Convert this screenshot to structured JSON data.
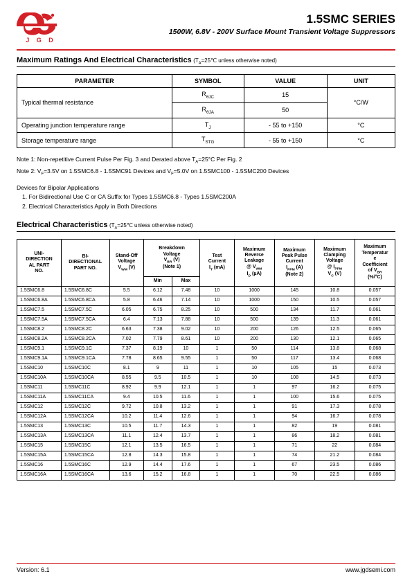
{
  "brand": {
    "initials": "J G D"
  },
  "header": {
    "series_title": "1.5SMC SERIES",
    "subtitle": "1500W, 6.8V - 200V Surface Mount Transient Voltage Suppressors"
  },
  "section1": {
    "title": "Maximum Ratings And Electrical Characteristics",
    "cond": "(T",
    "cond_sub": "A",
    "cond_rest": "=25℃ unless otherwise noted)"
  },
  "t1": {
    "headers": {
      "parameter": "PARAMETER",
      "symbol": "SYMBOL",
      "value": "VALUE",
      "unit": "UNIT"
    },
    "row1_param": "Typical thermal resistance",
    "row1a_symbol_html": "R<sub>θJC</sub>",
    "row1a_value": "15",
    "row1b_symbol_html": "R<sub>θJA</sub>",
    "row1b_value": "50",
    "row1_unit": "°C/W",
    "row2_param": "Operating junction temperature range",
    "row2_symbol_html": "T<sub>J</sub>",
    "row2_value": "- 55 to +150",
    "row2_unit": "°C",
    "row3_param": "Storage temperature range",
    "row3_symbol_html": "T<sub>STG</sub>",
    "row3_value": "- 55 to +150",
    "row3_unit": "°C"
  },
  "notes": {
    "n1_html": "Note 1: Non-repetitive Current Pulse Per Fig. 3 and Derated above T<sub>A</sub>=25°C Per Fig. 2",
    "n2_html": "Note 2: V<sub>F</sub>=3.5V on 1.5SMC6.8 - 1.5SMC91 Devices and V<sub>F</sub>=5.0V on 1.5SMC100 - 1.5SMC200 Devices",
    "bipolar_title": "Devices for Bipolar Applications",
    "bipolar_1": "1. For Bidirectional Use C or CA Suffix for Types 1.5SMC6.8 - Types 1.5SMC200A",
    "bipolar_2": "2. Electrical Characteristics Apply in Both Directions"
  },
  "section2": {
    "title": "Electrical Characteristics",
    "cond": "(T",
    "cond_sub": "A",
    "cond_rest": "=25℃ unless otherwise noted)"
  },
  "t2": {
    "headers": {
      "uni_html": "UNI-<br>DIRECTION<br>AL PART<br>NO.",
      "bi_html": "BI-<br>DIRECTIONAL<br>PART NO.",
      "standoff_html": "Stand-Off<br>Voltage<br>V<sub>WM</sub> (V)",
      "breakdown_top_html": "Breakdown<br>Voltage<br>V<sub>BR</sub> (V)<br>(Note 1)",
      "min": "Min",
      "max": "Max",
      "test_html": "Test<br>Current<br>I<sub>T</sub> (mA)",
      "leak_html": "Maximum<br>Reverse<br>Leakage<br>@ V<sub>WM</sub><br>I<sub>D</sub> (µA)",
      "peak_html": "Maximum<br>Peak Pulse<br>Current<br>I<sub>PPM</sub> (A)<br>(Note 2)",
      "clamp_html": "Maximum<br>Clamping<br>Voltage<br>@ I<sub>PPM</sub><br>V<sub>C</sub> (V)",
      "temp_html": "Maximum<br>Temperatur<br>e<br>Coefficient<br>of V<sub>BR</sub><br>(%/°C)"
    },
    "rows": [
      [
        "1.5SMC6.8",
        "1.5SMC6.8C",
        "5.5",
        "6.12",
        "7.48",
        "10",
        "1000",
        "145",
        "10.8",
        "0.057"
      ],
      [
        "1.5SMC6.8A",
        "1.5SMC6.8CA",
        "5.8",
        "6.46",
        "7.14",
        "10",
        "1000",
        "150",
        "10.5",
        "0.057"
      ],
      [
        "1.5SMC7.5",
        "1.5SMC7.5C",
        "6.05",
        "6.75",
        "8.25",
        "10",
        "500",
        "134",
        "11.7",
        "0.061"
      ],
      [
        "1.5SMC7.5A",
        "1.5SMC7.5CA",
        "6.4",
        "7.13",
        "7.88",
        "10",
        "500",
        "139",
        "11.3",
        "0.061"
      ],
      [
        "1.5SMC8.2",
        "1.5SMC8.2C",
        "6.63",
        "7.38",
        "9.02",
        "10",
        "200",
        "126",
        "12.5",
        "0.065"
      ],
      [
        "1.5SMC8.2A",
        "1.5SMC8.2CA",
        "7.02",
        "7.79",
        "8.61",
        "10",
        "200",
        "130",
        "12.1",
        "0.065"
      ],
      [
        "1.5SMC9.1",
        "1.5SMC9.1C",
        "7.37",
        "8.19",
        "10",
        "1",
        "50",
        "114",
        "13.8",
        "0.068"
      ],
      [
        "1.5SMC9.1A",
        "1.5SMC9.1CA",
        "7.78",
        "8.65",
        "9.55",
        "1",
        "50",
        "117",
        "13.4",
        "0.068"
      ],
      [
        "1.5SMC10",
        "1.5SMC10C",
        "8.1",
        "9",
        "11",
        "1",
        "10",
        "105",
        "15",
        "0.073"
      ],
      [
        "1.5SMC10A",
        "1.5SMC10CA",
        "8.55",
        "9.5",
        "10.5",
        "1",
        "10",
        "108",
        "14.5",
        "0.073"
      ],
      [
        "1.5SMC11",
        "1.5SMC11C",
        "8.92",
        "9.9",
        "12.1",
        "1",
        "1",
        "97",
        "16.2",
        "0.075"
      ],
      [
        "1.5SMC11A",
        "1.5SMC11CA",
        "9.4",
        "10.5",
        "11.6",
        "1",
        "1",
        "100",
        "15.6",
        "0.075"
      ],
      [
        "1.5SMC12",
        "1.5SMC12C",
        "9.72",
        "10.8",
        "13.2",
        "1",
        "1",
        "91",
        "17.3",
        "0.078"
      ],
      [
        "1.5SMC12A",
        "1.5SMC12CA",
        "10.2",
        "11.4",
        "12.6",
        "1",
        "1",
        "94",
        "16.7",
        "0.078"
      ],
      [
        "1.5SMC13",
        "1.5SMC13C",
        "10.5",
        "11.7",
        "14.3",
        "1",
        "1",
        "82",
        "19",
        "0.081"
      ],
      [
        "1.5SMC13A",
        "1.5SMC13CA",
        "11.1",
        "12.4",
        "13.7",
        "1",
        "1",
        "86",
        "18.2",
        "0.081"
      ],
      [
        "1.5SMC15",
        "1.5SMC15C",
        "12.1",
        "13.5",
        "16.5",
        "1",
        "1",
        "71",
        "22",
        "0.084"
      ],
      [
        "1.5SMC15A",
        "1.5SMC15CA",
        "12.8",
        "14.3",
        "15.8",
        "1",
        "1",
        "74",
        "21.2",
        "0.084"
      ],
      [
        "1.5SMC16",
        "1.5SMC16C",
        "12.9",
        "14.4",
        "17.6",
        "1",
        "1",
        "67",
        "23.5",
        "0.086"
      ],
      [
        "1.5SMC16A",
        "1.5SMC16CA",
        "13.6",
        "15.2",
        "16.8",
        "1",
        "1",
        "70",
        "22.5",
        "0.086"
      ]
    ]
  },
  "footer": {
    "version": "Version: 6.1",
    "url": "www.jgdsemi.com"
  },
  "colors": {
    "accent": "#d42027"
  }
}
